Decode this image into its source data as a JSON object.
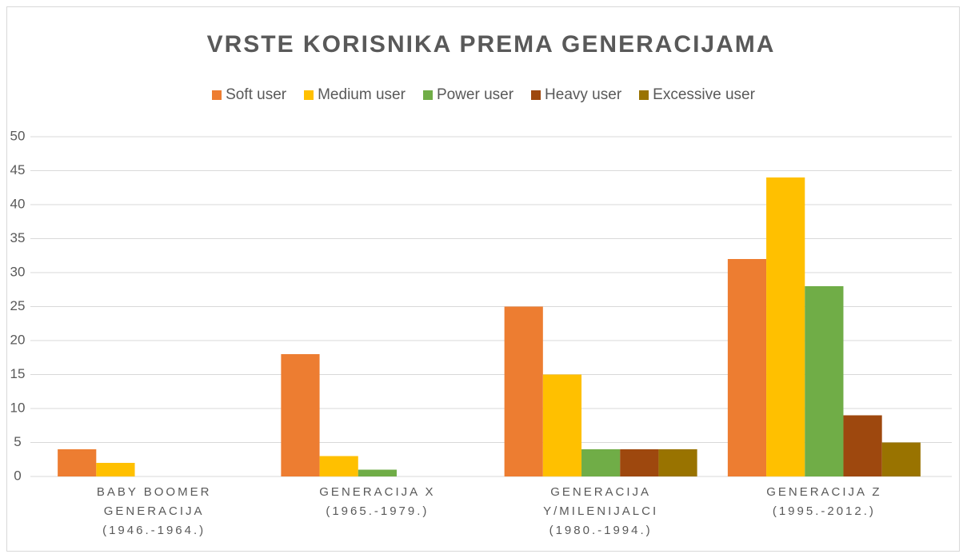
{
  "chart_data": {
    "type": "bar",
    "title": "VRSTE KORISNIKA PREMA GENERACIJAMA",
    "categories": [
      "BABY BOOMER GENERACIJA (1946.-1964.)",
      "GENERACIJA X (1965.-1979.)",
      "GENERACIJA Y/MILENIJALCI (1980.-1994.)",
      "GENERACIJA Z (1995.-2012.)"
    ],
    "series": [
      {
        "name": "Soft user",
        "color": "#ed7d31",
        "values": [
          4,
          18,
          25,
          32
        ]
      },
      {
        "name": "Medium user",
        "color": "#ffc000",
        "values": [
          2,
          3,
          15,
          44
        ]
      },
      {
        "name": "Power user",
        "color": "#70ad47",
        "values": [
          0,
          1,
          4,
          28
        ]
      },
      {
        "name": "Heavy user",
        "color": "#9e480e",
        "values": [
          0,
          0,
          4,
          9
        ]
      },
      {
        "name": "Excessive user",
        "color": "#997300",
        "values": [
          0,
          0,
          4,
          5
        ]
      }
    ],
    "ylim": [
      0,
      50
    ],
    "yticks": [
      0,
      5,
      10,
      15,
      20,
      25,
      30,
      35,
      40,
      45,
      50
    ],
    "grid": true,
    "legend": "top"
  }
}
